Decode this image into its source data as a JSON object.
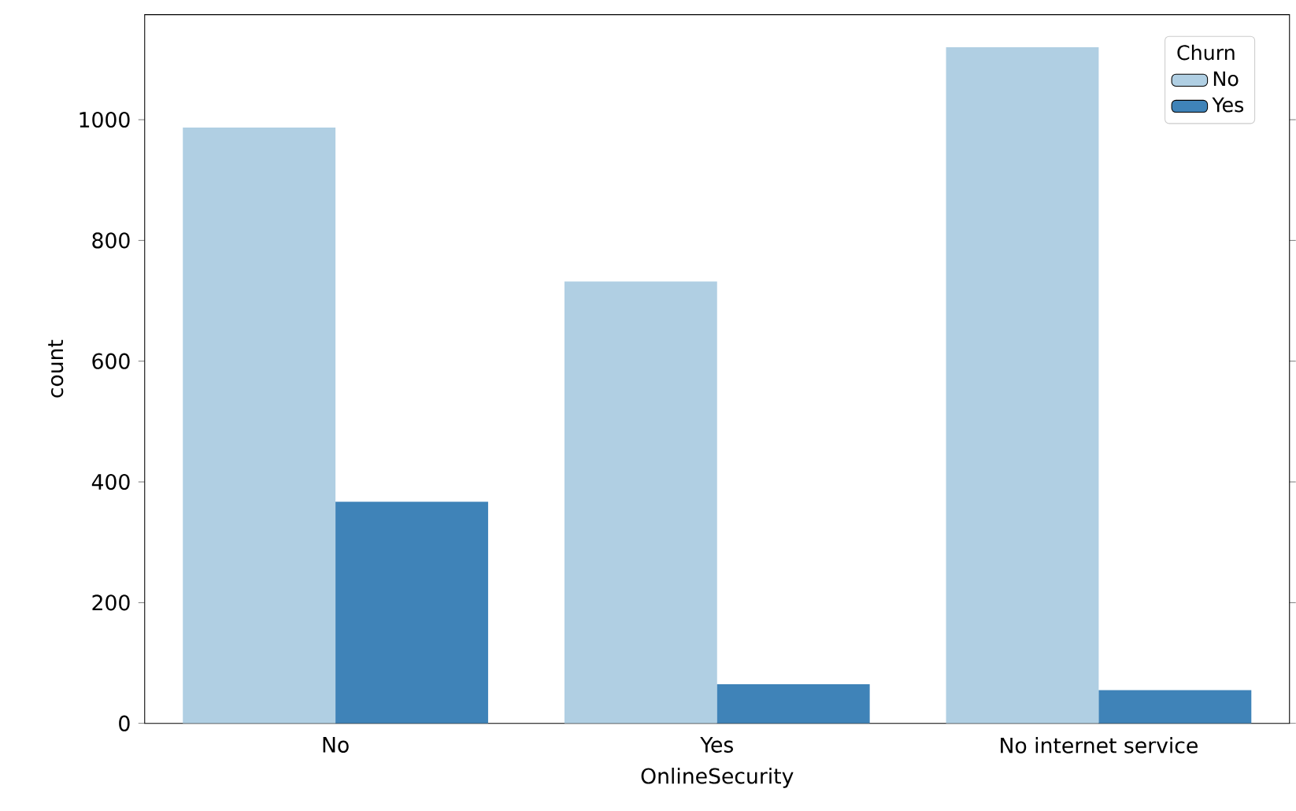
{
  "chart_data": {
    "type": "bar",
    "xlabel": "OnlineSecurity",
    "ylabel": "count",
    "legend_title": "Churn",
    "categories": [
      "No",
      "Yes",
      "No internet service"
    ],
    "series": [
      {
        "name": "No",
        "color": "#b0cfe3",
        "values": [
          987,
          732,
          1120
        ]
      },
      {
        "name": "Yes",
        "color": "#3f83b8",
        "values": [
          367,
          65,
          55
        ]
      }
    ],
    "ylim": [
      0,
      1174
    ],
    "yticks": [
      0,
      200,
      400,
      600,
      800,
      1000
    ],
    "legend": "top right",
    "grid": false
  }
}
